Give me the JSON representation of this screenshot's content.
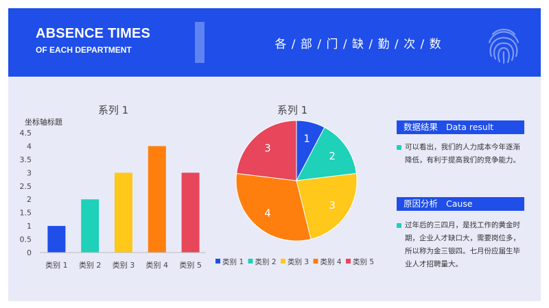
{
  "header": {
    "title_main": "ABSENCE TIMES",
    "title_sub": "OF EACH DEPARTMENT",
    "title_cn": "各 / 部 / 门 / 缺 / 勤 / 次 / 数",
    "icon": "fingerprint-icon"
  },
  "colors": {
    "accent": "#1f4ee8",
    "panel": "#e9eaf8",
    "series": [
      "#1f4ee8",
      "#1fd1b8",
      "#ffc81a",
      "#ff7f0e",
      "#e7465b"
    ]
  },
  "chart_data": [
    {
      "type": "bar",
      "title": "系列 1",
      "ylabel": "坐标轴标题",
      "categories": [
        "类别 1",
        "类别 2",
        "类别 3",
        "类别 4",
        "类别 5"
      ],
      "values": [
        1,
        2,
        3,
        4,
        3
      ],
      "ylim": [
        0,
        4.5
      ],
      "yticks": [
        "0",
        "0.5",
        "1",
        "1.5",
        "2",
        "2.5",
        "3",
        "3.5",
        "4",
        "4.5"
      ],
      "grid": false
    },
    {
      "type": "pie",
      "title": "系列 1",
      "categories": [
        "类别 1",
        "类别 2",
        "类别 3",
        "类别 4",
        "类别 5"
      ],
      "values": [
        1,
        2,
        3,
        4,
        3
      ],
      "data_labels": [
        "1",
        "2",
        "3",
        "4",
        "3"
      ],
      "legend": "bottom"
    }
  ],
  "side": {
    "result_label_cn": "数据结果",
    "result_label_en": "Data result",
    "result_text": "可以看出，我们的人力成本今年逐渐降低，有利于提高我们的竞争能力。",
    "cause_label_cn": "原因分析",
    "cause_label_en": "Cause",
    "cause_text": "过年后的三四月，是找工作的黄金时期，企业人才缺口大，需要岗位多，所以称为金三银四。七月份应届生毕业人才招聘量大。"
  }
}
